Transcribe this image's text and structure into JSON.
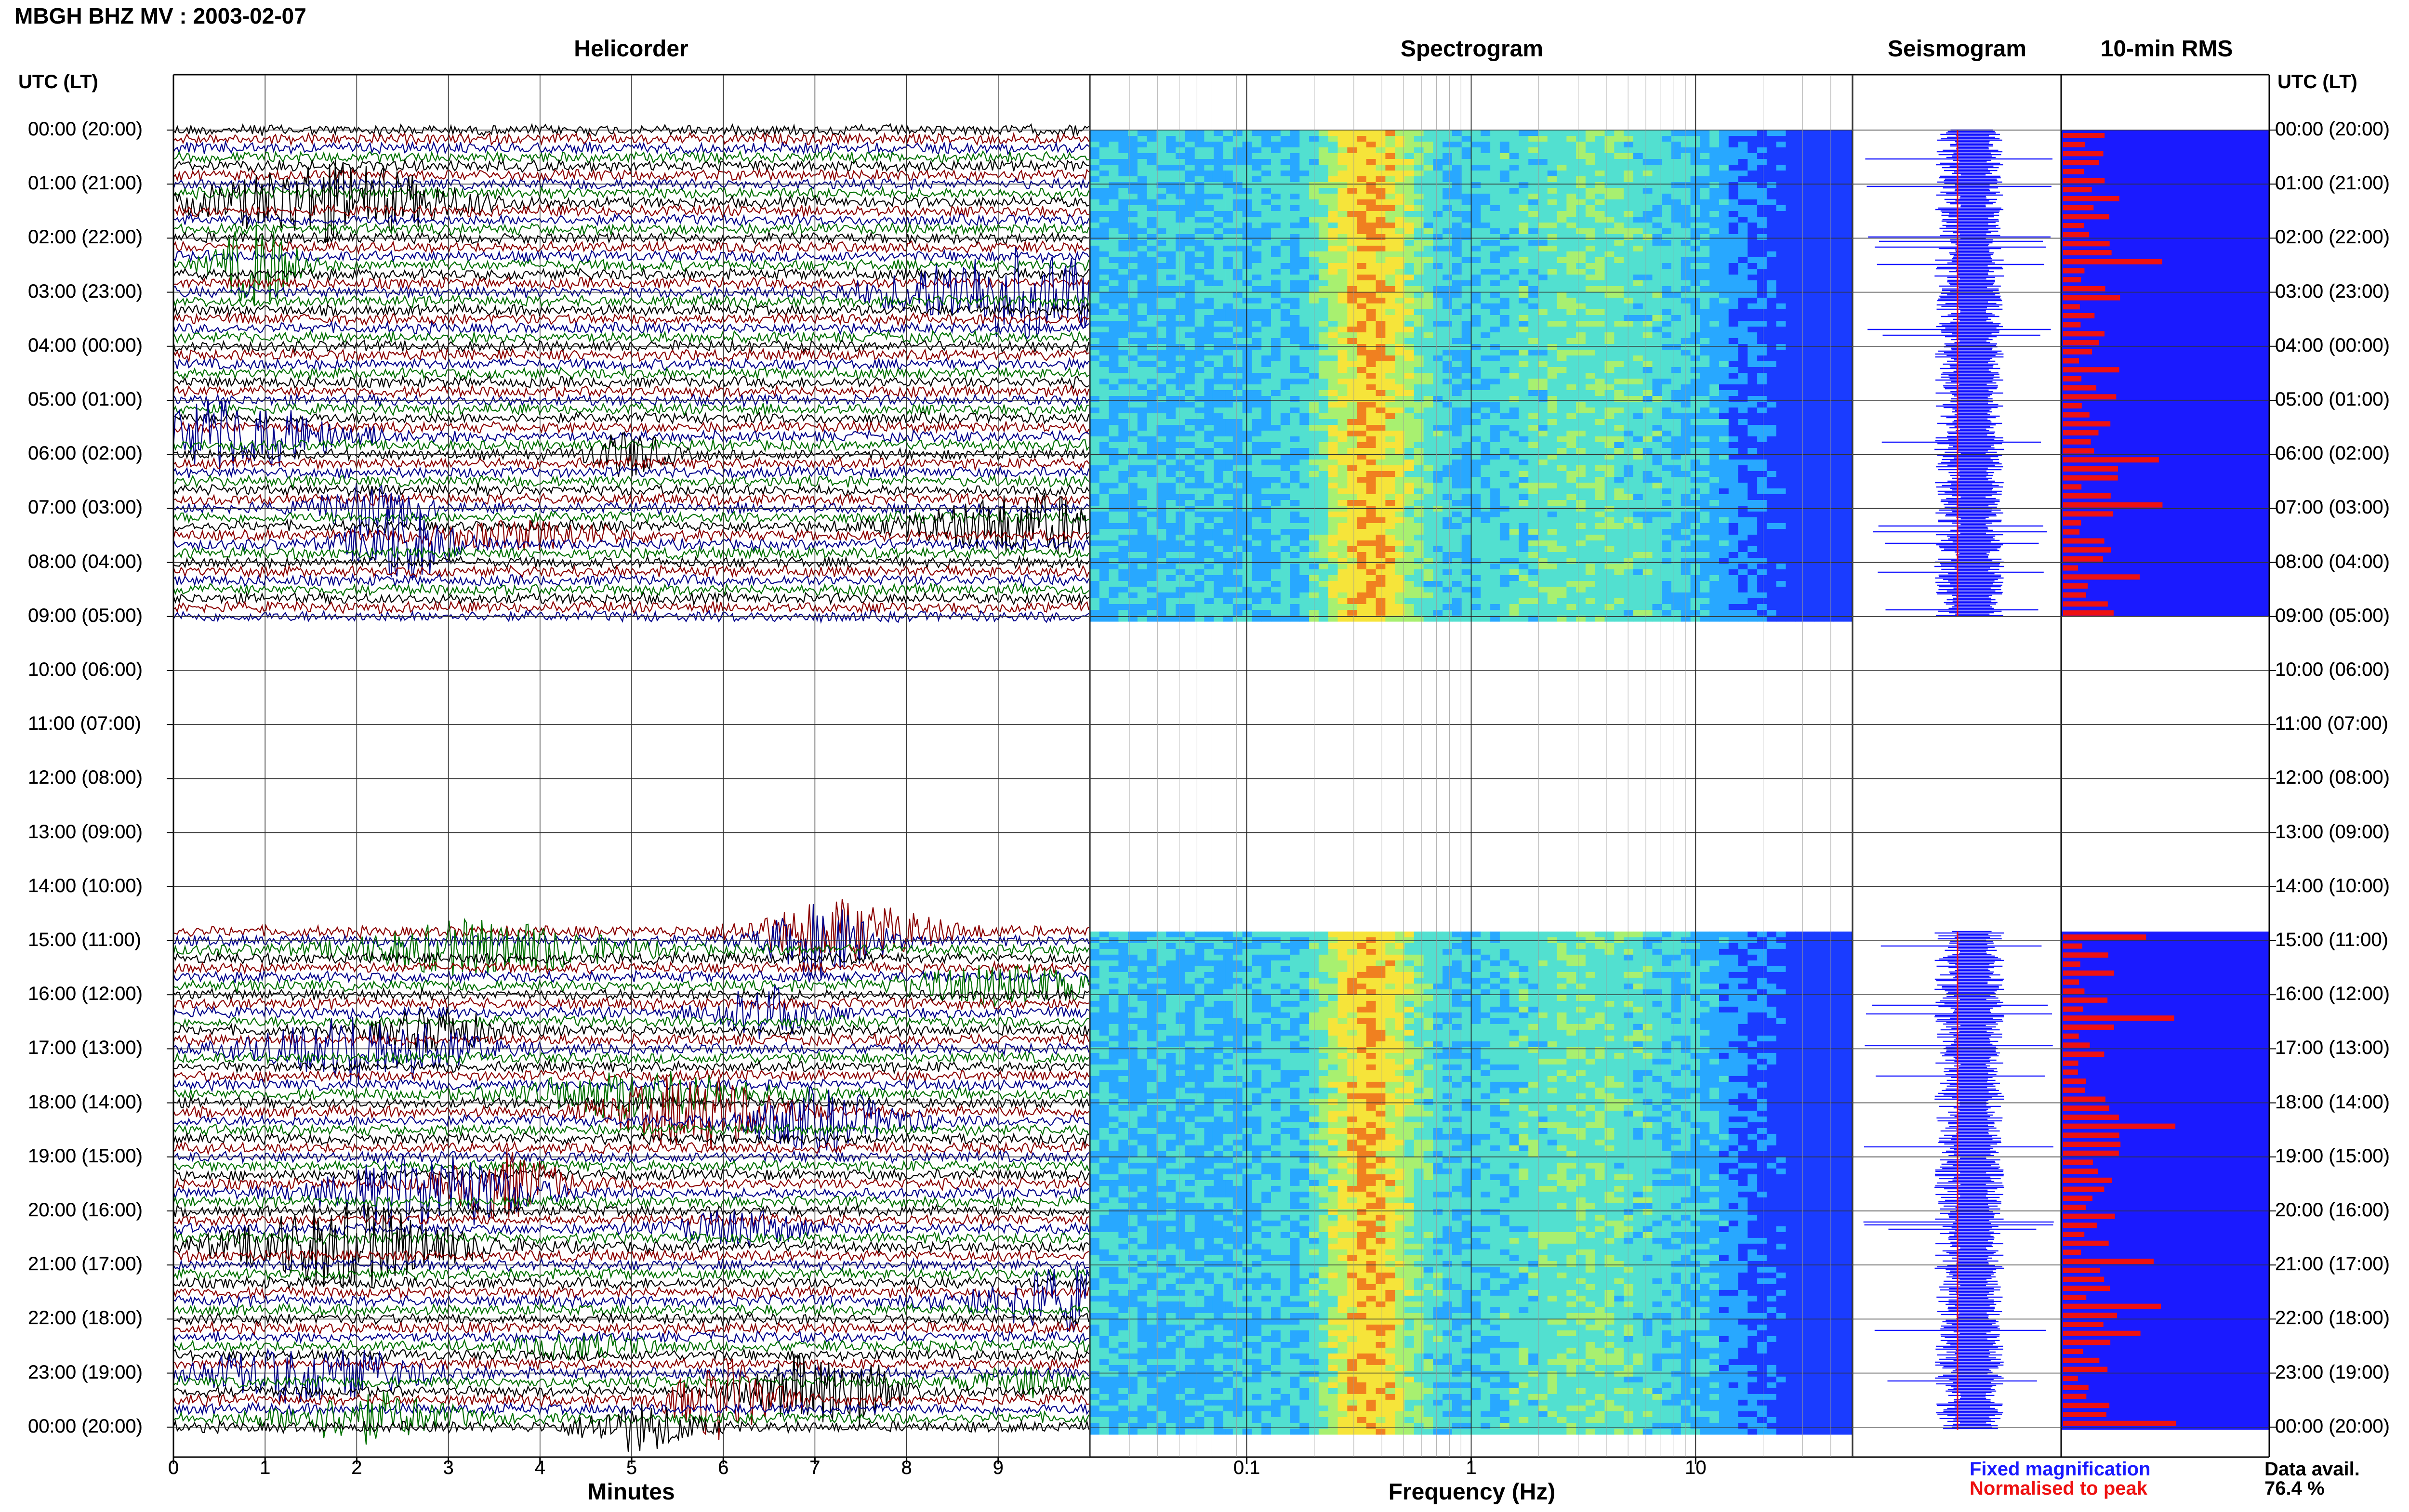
{
  "header": {
    "title": "MBGH BHZ MV : 2003-02-07"
  },
  "panels": {
    "helicorder": "Helicorder",
    "spectrogram": "Spectrogram",
    "seismogram": "Seismogram",
    "rms": "10-min RMS"
  },
  "time_axis": {
    "header_left": "UTC (LT)",
    "header_right": "UTC (LT)",
    "labels": [
      "00:00 (20:00)",
      "01:00 (21:00)",
      "02:00 (22:00)",
      "03:00 (23:00)",
      "04:00 (00:00)",
      "05:00 (01:00)",
      "06:00 (02:00)",
      "07:00 (03:00)",
      "08:00 (04:00)",
      "09:00 (05:00)",
      "10:00 (06:00)",
      "11:00 (07:00)",
      "12:00 (08:00)",
      "13:00 (09:00)",
      "14:00 (10:00)",
      "15:00 (11:00)",
      "16:00 (12:00)",
      "17:00 (13:00)",
      "18:00 (14:00)",
      "19:00 (15:00)",
      "20:00 (16:00)",
      "21:00 (17:00)",
      "22:00 (18:00)",
      "23:00 (19:00)",
      "00:00 (20:00)"
    ]
  },
  "x_axes": {
    "minutes_label": "Minutes",
    "minutes_ticks": [
      "0",
      "1",
      "2",
      "3",
      "4",
      "5",
      "6",
      "7",
      "8",
      "9"
    ],
    "frequency_label": "Frequency (Hz)",
    "frequency_ticks": [
      "0.1",
      "1",
      "10"
    ]
  },
  "legend": {
    "fixed": "Fixed magnification",
    "normalised": "Normalised to peak"
  },
  "availability": {
    "label": "Data avail.",
    "value": "76.4 %"
  },
  "colors": {
    "helicorder_traces": [
      "#000000",
      "#8b0000",
      "#00008b",
      "#007000"
    ],
    "fixed": "#1a1aff",
    "normalised": "#ee1111"
  },
  "chart_data": [
    {
      "type": "line",
      "title": "Helicorder",
      "xlabel": "Minutes",
      "xlim": [
        0,
        10
      ],
      "ylabel": "UTC (LT)",
      "data_gap_utc": [
        "09:00",
        "14:50"
      ]
    },
    {
      "type": "heatmap",
      "title": "Spectrogram",
      "xlabel": "Frequency (Hz)",
      "xscale": "log",
      "xlim": [
        0.02,
        50
      ],
      "peak_band_hz": [
        0.2,
        0.6
      ],
      "data_gap_utc": [
        "09:00",
        "14:50"
      ]
    },
    {
      "type": "line",
      "title": "Seismogram",
      "data_gap_utc": [
        "09:00",
        "14:50"
      ]
    },
    {
      "type": "bar",
      "title": "10-min RMS",
      "orientation": "horizontal",
      "data_gap_utc": [
        "09:00",
        "14:50"
      ]
    }
  ]
}
